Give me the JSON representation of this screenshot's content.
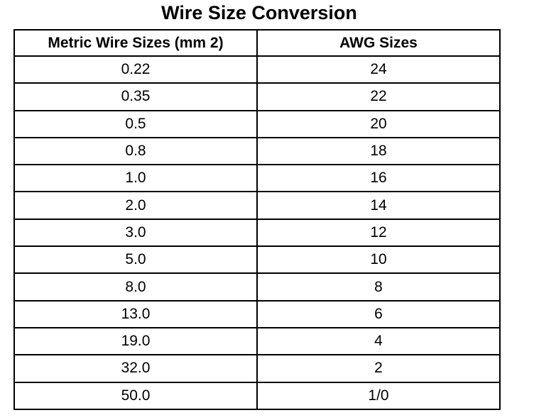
{
  "header": {
    "title": "Wire Size Conversion"
  },
  "table": {
    "columns": [
      "Metric Wire Sizes (mm 2)",
      "AWG Sizes"
    ],
    "rows": [
      [
        "0.22",
        "24"
      ],
      [
        "0.35",
        "22"
      ],
      [
        "0.5",
        "20"
      ],
      [
        "0.8",
        "18"
      ],
      [
        "1.0",
        "16"
      ],
      [
        "2.0",
        "14"
      ],
      [
        "3.0",
        "12"
      ],
      [
        "5.0",
        "10"
      ],
      [
        "8.0",
        "8"
      ],
      [
        "13.0",
        "6"
      ],
      [
        "19.0",
        "4"
      ],
      [
        "32.0",
        "2"
      ],
      [
        "50.0",
        "1/0"
      ]
    ]
  }
}
